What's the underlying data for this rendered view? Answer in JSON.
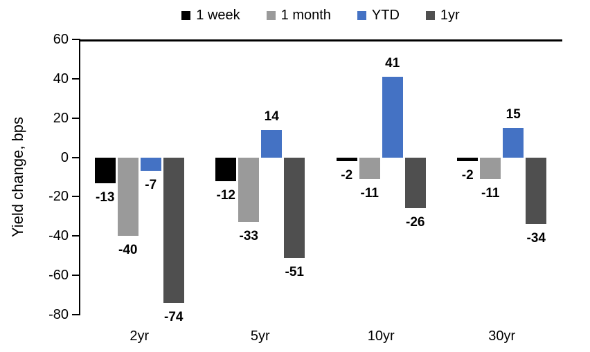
{
  "chart_data": {
    "type": "bar",
    "title": "",
    "xlabel": "",
    "ylabel": "Yield change, bps",
    "categories": [
      "2yr",
      "5yr",
      "10yr",
      "30yr"
    ],
    "series": [
      {
        "name": "1 week",
        "color": "#000000",
        "values": [
          -13,
          -12,
          -2,
          -2
        ]
      },
      {
        "name": "1 month",
        "color": "#9A9A9A",
        "values": [
          -40,
          -33,
          -11,
          -11
        ]
      },
      {
        "name": "YTD",
        "color": "#4472C4",
        "values": [
          -7,
          14,
          41,
          15
        ]
      },
      {
        "name": "1yr",
        "color": "#4F4F4F",
        "values": [
          -74,
          -51,
          -26,
          -34
        ]
      }
    ],
    "ylim": [
      -80,
      60
    ],
    "y_ticks": [
      60,
      40,
      20,
      0,
      -20,
      -40,
      -60,
      -80
    ],
    "legend_position": "top",
    "grid": false,
    "data_labels": true,
    "axis_color": "#000000",
    "text_color": "#000000",
    "background_color": "#FFFFFF"
  }
}
